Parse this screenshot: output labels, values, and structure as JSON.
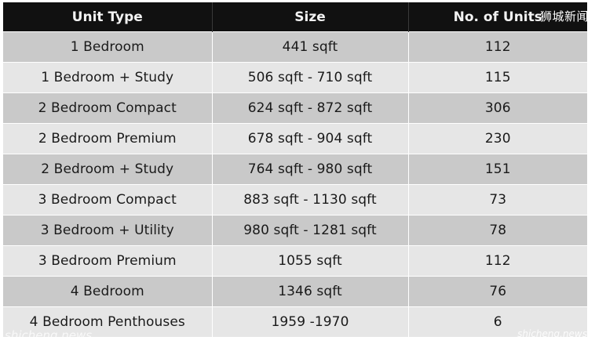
{
  "table": {
    "headers": [
      "Unit Type",
      "Size",
      "No. of Units"
    ],
    "rows": [
      [
        "1 Bedroom",
        "441 sqft",
        "112"
      ],
      [
        "1 Bedroom + Study",
        "506 sqft - 710 sqft",
        "115"
      ],
      [
        "2 Bedroom Compact",
        "624 sqft - 872 sqft",
        "306"
      ],
      [
        "2 Bedroom Premium",
        "678 sqft - 904 sqft",
        "230"
      ],
      [
        "2 Bedroom + Study",
        "764 sqft - 980 sqft",
        "151"
      ],
      [
        "3 Bedroom Compact",
        "883 sqft - 1130 sqft",
        "73"
      ],
      [
        "3 Bedroom + Utility",
        "980 sqft - 1281 sqft",
        "78"
      ],
      [
        "3 Bedroom Premium",
        "1055 sqft",
        "112"
      ],
      [
        "4 Bedroom",
        "1346 sqft",
        "76"
      ],
      [
        "4 Bedroom Penthouses",
        "1959 -1970",
        "6"
      ]
    ]
  },
  "watermarks": {
    "top_right": "狮城新闻",
    "bottom_left": "shicheng.news",
    "bottom_right": "shicheng.news"
  }
}
